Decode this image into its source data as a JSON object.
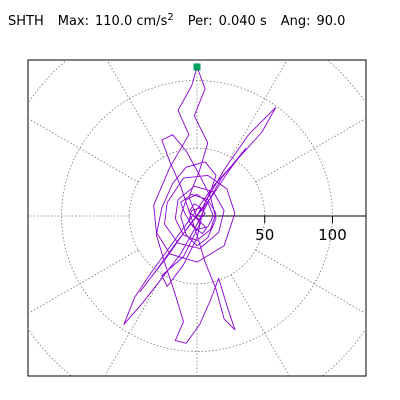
{
  "header": {
    "station": "SHTH",
    "max_label": "Max:",
    "max_value": "110.0",
    "max_unit": "cm/s",
    "max_exp": "2",
    "per_label": "Per:",
    "per_value": "0.040",
    "per_unit": "s",
    "ang_label": "Ang:",
    "ang_value": "90.0"
  },
  "chart_data": {
    "type": "polar-orbit",
    "rlim": [
      0,
      110
    ],
    "ring_values": [
      50,
      100,
      150
    ],
    "radial_tick_labels": [
      "50",
      "100"
    ],
    "spoke_angles_deg": [
      0,
      30,
      60,
      90,
      120,
      150,
      180,
      210,
      240,
      270,
      300,
      330
    ],
    "grid": true,
    "peak_marker": {
      "x": 0,
      "y": 110,
      "color": "#00a060"
    },
    "line_color": "#8a00d4",
    "trace": [
      [
        0,
        0
      ],
      [
        3,
        6
      ],
      [
        -2,
        9
      ],
      [
        -6,
        3
      ],
      [
        2,
        -4
      ],
      [
        7,
        -9
      ],
      [
        4,
        -13
      ],
      [
        -3,
        -8
      ],
      [
        -9,
        2
      ],
      [
        -12,
        10
      ],
      [
        -4,
        16
      ],
      [
        8,
        12
      ],
      [
        14,
        2
      ],
      [
        10,
        -10
      ],
      [
        0,
        -18
      ],
      [
        -10,
        -14
      ],
      [
        -16,
        -2
      ],
      [
        -14,
        12
      ],
      [
        -2,
        22
      ],
      [
        12,
        18
      ],
      [
        20,
        4
      ],
      [
        16,
        -12
      ],
      [
        2,
        -24
      ],
      [
        -14,
        -20
      ],
      [
        -24,
        -6
      ],
      [
        -22,
        10
      ],
      [
        -10,
        28
      ],
      [
        8,
        30
      ],
      [
        22,
        20
      ],
      [
        28,
        2
      ],
      [
        20,
        -22
      ],
      [
        0,
        -34
      ],
      [
        -20,
        -28
      ],
      [
        -30,
        -12
      ],
      [
        -32,
        8
      ],
      [
        -20,
        36
      ],
      [
        -6,
        60
      ],
      [
        -14,
        78
      ],
      [
        -4,
        96
      ],
      [
        0,
        110
      ],
      [
        6,
        94
      ],
      [
        -2,
        74
      ],
      [
        8,
        54
      ],
      [
        2,
        34
      ],
      [
        -6,
        14
      ],
      [
        2,
        -6
      ],
      [
        -10,
        -30
      ],
      [
        -26,
        -44
      ],
      [
        -22,
        -52
      ],
      [
        -10,
        -36
      ],
      [
        0,
        -16
      ],
      [
        6,
        10
      ],
      [
        20,
        34
      ],
      [
        38,
        60
      ],
      [
        58,
        80
      ],
      [
        48,
        62
      ],
      [
        30,
        42
      ],
      [
        12,
        22
      ],
      [
        -2,
        2
      ],
      [
        -18,
        -20
      ],
      [
        -34,
        -42
      ],
      [
        -46,
        -60
      ],
      [
        -54,
        -80
      ],
      [
        -40,
        -64
      ],
      [
        -26,
        -46
      ],
      [
        -12,
        -28
      ],
      [
        -2,
        -10
      ],
      [
        8,
        10
      ],
      [
        18,
        28
      ],
      [
        28,
        40
      ],
      [
        36,
        50
      ],
      [
        24,
        34
      ],
      [
        12,
        16
      ],
      [
        0,
        0
      ],
      [
        -14,
        -18
      ],
      [
        -30,
        -40
      ],
      [
        -42,
        -56
      ],
      [
        -36,
        -48
      ],
      [
        -22,
        -30
      ],
      [
        -8,
        -10
      ],
      [
        4,
        6
      ],
      [
        10,
        18
      ],
      [
        14,
        30
      ],
      [
        6,
        40
      ],
      [
        -8,
        36
      ],
      [
        -18,
        24
      ],
      [
        -26,
        6
      ],
      [
        -30,
        -14
      ],
      [
        -24,
        -34
      ],
      [
        -16,
        -58
      ],
      [
        -10,
        -78
      ],
      [
        -16,
        -92
      ],
      [
        -8,
        -94
      ],
      [
        2,
        -80
      ],
      [
        10,
        -62
      ],
      [
        16,
        -46
      ],
      [
        22,
        -66
      ],
      [
        28,
        -84
      ],
      [
        20,
        -76
      ],
      [
        14,
        -54
      ],
      [
        6,
        -34
      ],
      [
        0,
        -14
      ],
      [
        -6,
        4
      ],
      [
        -12,
        22
      ],
      [
        -20,
        40
      ],
      [
        -26,
        56
      ],
      [
        -18,
        60
      ],
      [
        -8,
        48
      ],
      [
        2,
        30
      ],
      [
        10,
        14
      ],
      [
        14,
        -2
      ],
      [
        8,
        -16
      ],
      [
        0,
        -22
      ],
      [
        -8,
        -14
      ],
      [
        -12,
        0
      ],
      [
        -8,
        12
      ],
      [
        0,
        16
      ],
      [
        8,
        10
      ],
      [
        12,
        0
      ],
      [
        8,
        -8
      ],
      [
        0,
        -10
      ],
      [
        -6,
        -4
      ],
      [
        -4,
        4
      ],
      [
        2,
        6
      ],
      [
        6,
        2
      ],
      [
        2,
        -3
      ],
      [
        -2,
        0
      ],
      [
        0,
        0
      ]
    ]
  }
}
